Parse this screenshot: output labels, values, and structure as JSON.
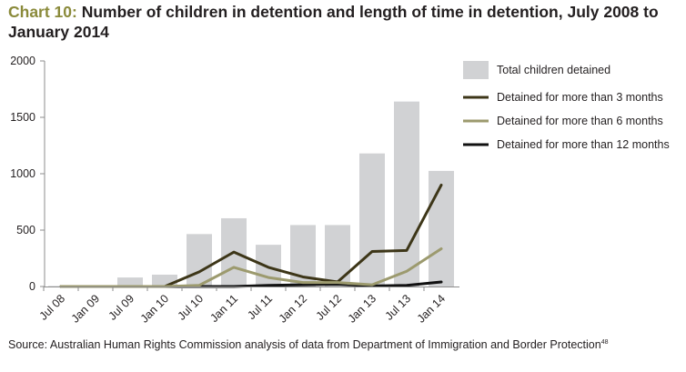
{
  "header": {
    "title_lead": "Chart 10:",
    "title_rest": " Number of children in detention and length of time in detention, July 2008 to January 2014"
  },
  "footer": {
    "source": "Source: Australian Human Rights Commission analysis of data from Department of Immigration and Border Protection",
    "footnote_ref": "48"
  },
  "chart_data": {
    "type": "bar",
    "title": "Number of children in detention and length of time in detention, July 2008 to January 2014",
    "categories": [
      "Jul 08",
      "Jan 09",
      "Jul 09",
      "Jan 10",
      "Jul 10",
      "Jan 11",
      "Jul 11",
      "Jan 12",
      "Jul 12",
      "Jan 13",
      "Jul 13",
      "Jan 14"
    ],
    "ylim": [
      0,
      2000
    ],
    "yticks": [
      0,
      500,
      1000,
      1500,
      2000
    ],
    "grid": false,
    "legend_position": "top-right",
    "series": [
      {
        "name": "Total children detained",
        "kind": "bar",
        "color": "#d1d2d4",
        "values": [
          5,
          5,
          80,
          105,
          465,
          605,
          370,
          545,
          545,
          1180,
          1640,
          1025
        ]
      },
      {
        "name": "Detained for more than 3 months",
        "kind": "line",
        "color": "#3d3618",
        "values": [
          0,
          0,
          0,
          0,
          130,
          305,
          170,
          85,
          40,
          310,
          320,
          900
        ]
      },
      {
        "name": "Detained for more than 6 months",
        "kind": "line",
        "color": "#9c9a6e",
        "values": [
          0,
          0,
          0,
          0,
          10,
          170,
          80,
          35,
          35,
          15,
          135,
          335
        ]
      },
      {
        "name": "Detained for more than 12 months",
        "kind": "line",
        "color": "#111111",
        "values": [
          0,
          0,
          0,
          0,
          0,
          0,
          10,
          15,
          20,
          5,
          10,
          40
        ]
      }
    ]
  }
}
